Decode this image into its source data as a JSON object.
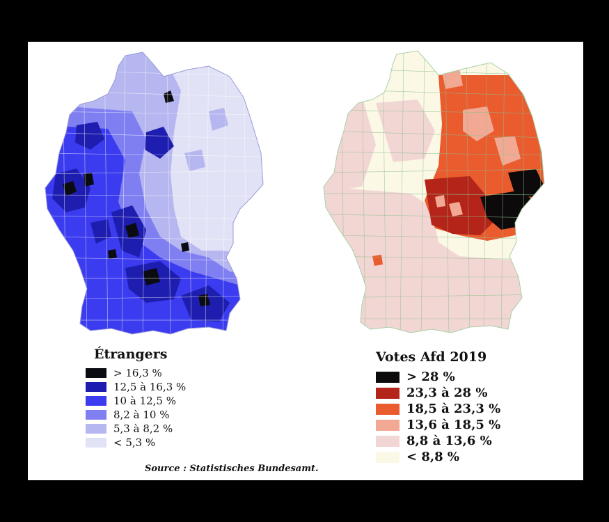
{
  "maps": [
    {
      "title": "Étrangers",
      "legend": [
        {
          "label": "> 16,3 %",
          "color": "#0b0b12"
        },
        {
          "label": "12,5 à 16,3 %",
          "color": "#1d1daf"
        },
        {
          "label": "10 à 12,5 %",
          "color": "#3b3bef"
        },
        {
          "label": "8,2 à 10 %",
          "color": "#7f7ff2"
        },
        {
          "label": "5,3 à 8,2 %",
          "color": "#b6b6f0"
        },
        {
          "label": "< 5,3 %",
          "color": "#e2e2f6"
        }
      ]
    },
    {
      "title": "Votes Afd 2019",
      "legend": [
        {
          "label": "> 28 %",
          "color": "#0c0a0a"
        },
        {
          "label": "23,3 à 28 %",
          "color": "#b52418"
        },
        {
          "label": "18,5 à 23,3 %",
          "color": "#ea5b2e"
        },
        {
          "label": "13,6 à 18,5 %",
          "color": "#f2a993"
        },
        {
          "label": "8,8 à 13,6 %",
          "color": "#f2d6d4"
        },
        {
          "label": "< 8,8 %",
          "color": "#fbf8e6"
        }
      ]
    }
  ],
  "source": "Source : Statistisches Bundesamt."
}
